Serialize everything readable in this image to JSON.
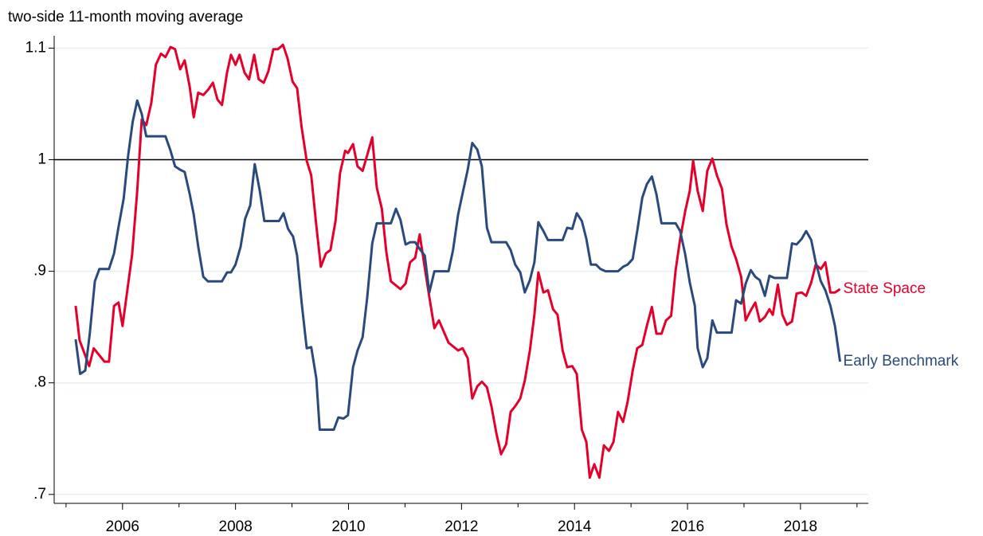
{
  "chart_data": {
    "type": "line",
    "title": "two-side 11-month moving average",
    "xlim": [
      2004.79,
      2019.2
    ],
    "xticks": [
      2006,
      2008,
      2010,
      2012,
      2014,
      2016,
      2018
    ],
    "xminor": [
      2005,
      2007,
      2009,
      2011,
      2013,
      2015,
      2017,
      2019
    ],
    "ylim": [
      0.692,
      1.111
    ],
    "yticks": [
      {
        "value": 0.7,
        "label": ".7"
      },
      {
        "value": 0.8,
        "label": ".8"
      },
      {
        "value": 0.9,
        "label": ".9"
      },
      1,
      1.1
    ],
    "hline": 1,
    "grid": true,
    "series": [
      {
        "name": "State Space",
        "color": "#e4002b",
        "x": [
          2005.17,
          2005.24,
          2005.41,
          2005.49,
          2005.68,
          2005.76,
          2005.85,
          2005.93,
          2006.0,
          2006.17,
          2006.26,
          2006.34,
          2006.42,
          2006.51,
          2006.59,
          2006.68,
          2006.76,
          2006.85,
          2006.93,
          2007.02,
          2007.1,
          2007.19,
          2007.26,
          2007.34,
          2007.43,
          2007.52,
          2007.6,
          2007.68,
          2007.76,
          2007.85,
          2007.92,
          2008.0,
          2008.07,
          2008.16,
          2008.24,
          2008.33,
          2008.41,
          2008.5,
          2008.58,
          2008.67,
          2008.75,
          2008.84,
          2008.92,
          2009.01,
          2009.09,
          2009.17,
          2009.26,
          2009.34,
          2009.43,
          2009.51,
          2009.6,
          2009.68,
          2009.77,
          2009.85,
          2009.94,
          2009.99,
          2010.08,
          2010.16,
          2010.25,
          2010.33,
          2010.42,
          2010.5,
          2010.59,
          2010.67,
          2010.75,
          2010.92,
          2011.01,
          2011.09,
          2011.18,
          2011.26,
          2011.35,
          2011.43,
          2011.52,
          2011.6,
          2011.77,
          2011.94,
          2012.02,
          2012.11,
          2012.19,
          2012.28,
          2012.36,
          2012.45,
          2012.53,
          2012.62,
          2012.7,
          2012.79,
          2012.87,
          2012.95,
          2013.04,
          2013.12,
          2013.21,
          2013.29,
          2013.36,
          2013.45,
          2013.53,
          2013.62,
          2013.7,
          2013.79,
          2013.87,
          2013.96,
          2014.04,
          2014.13,
          2014.21,
          2014.27,
          2014.35,
          2014.44,
          2014.52,
          2014.61,
          2014.69,
          2014.77,
          2014.86,
          2014.94,
          2015.03,
          2015.11,
          2015.2,
          2015.28,
          2015.37,
          2015.45,
          2015.54,
          2015.62,
          2015.71,
          2015.79,
          2015.87,
          2015.96,
          2016.04,
          2016.1,
          2016.18,
          2016.27,
          2016.35,
          2016.44,
          2016.52,
          2016.61,
          2016.69,
          2016.78,
          2016.86,
          2016.95,
          2017.03,
          2017.12,
          2017.2,
          2017.28,
          2017.37,
          2017.45,
          2017.51,
          2017.6,
          2017.68,
          2017.76,
          2017.85,
          2017.93,
          2018.02,
          2018.1,
          2018.19,
          2018.27,
          2018.36,
          2018.44,
          2018.53,
          2018.61,
          2018.7
        ],
        "values": [
          0.869,
          0.838,
          0.815,
          0.831,
          0.819,
          0.819,
          0.869,
          0.872,
          0.851,
          0.915,
          0.972,
          1.036,
          1.031,
          1.051,
          1.085,
          1.095,
          1.092,
          1.101,
          1.099,
          1.081,
          1.089,
          1.065,
          1.038,
          1.06,
          1.058,
          1.063,
          1.069,
          1.054,
          1.049,
          1.078,
          1.094,
          1.085,
          1.094,
          1.078,
          1.072,
          1.094,
          1.072,
          1.069,
          1.079,
          1.099,
          1.099,
          1.103,
          1.091,
          1.07,
          1.064,
          1.029,
          0.999,
          0.986,
          0.941,
          0.904,
          0.916,
          0.919,
          0.945,
          0.988,
          1.008,
          1.006,
          1.014,
          0.994,
          0.99,
          1.004,
          1.02,
          0.975,
          0.956,
          0.917,
          0.891,
          0.884,
          0.889,
          0.908,
          0.912,
          0.933,
          0.903,
          0.877,
          0.849,
          0.856,
          0.836,
          0.829,
          0.831,
          0.822,
          0.786,
          0.797,
          0.801,
          0.796,
          0.779,
          0.754,
          0.736,
          0.745,
          0.774,
          0.779,
          0.786,
          0.802,
          0.829,
          0.861,
          0.899,
          0.881,
          0.883,
          0.866,
          0.861,
          0.829,
          0.814,
          0.815,
          0.808,
          0.758,
          0.747,
          0.715,
          0.727,
          0.715,
          0.744,
          0.739,
          0.747,
          0.774,
          0.765,
          0.783,
          0.811,
          0.831,
          0.834,
          0.851,
          0.868,
          0.844,
          0.844,
          0.856,
          0.86,
          0.901,
          0.929,
          0.954,
          0.972,
          0.999,
          0.972,
          0.954,
          0.99,
          1.001,
          0.986,
          0.974,
          0.942,
          0.922,
          0.911,
          0.895,
          0.856,
          0.865,
          0.872,
          0.855,
          0.859,
          0.866,
          0.861,
          0.888,
          0.861,
          0.852,
          0.855,
          0.88,
          0.881,
          0.878,
          0.89,
          0.906,
          0.902,
          0.908,
          0.881,
          0.881,
          0.884
        ]
      },
      {
        "name": "Early Benchmark",
        "color": "#2a4a7f",
        "x": [
          2005.17,
          2005.25,
          2005.34,
          2005.42,
          2005.51,
          2005.59,
          2005.76,
          2005.85,
          2005.93,
          2006.02,
          2006.1,
          2006.18,
          2006.26,
          2006.34,
          2006.42,
          2006.76,
          2006.85,
          2006.93,
          2007.02,
          2007.1,
          2007.19,
          2007.26,
          2007.34,
          2007.43,
          2007.51,
          2007.76,
          2007.85,
          2007.92,
          2008.0,
          2008.09,
          2008.17,
          2008.26,
          2008.34,
          2008.43,
          2008.51,
          2008.77,
          2008.85,
          2008.93,
          2009.02,
          2009.09,
          2009.17,
          2009.26,
          2009.34,
          2009.43,
          2009.49,
          2009.74,
          2009.82,
          2009.91,
          2009.99,
          2010.08,
          2010.16,
          2010.25,
          2010.33,
          2010.42,
          2010.5,
          2010.75,
          2010.84,
          2010.92,
          2011.01,
          2011.09,
          2011.18,
          2011.26,
          2011.35,
          2011.43,
          2011.52,
          2011.77,
          2011.85,
          2011.94,
          2012.02,
          2012.11,
          2012.19,
          2012.28,
          2012.36,
          2012.45,
          2012.53,
          2012.79,
          2012.87,
          2012.95,
          2013.04,
          2013.12,
          2013.21,
          2013.29,
          2013.36,
          2013.45,
          2013.53,
          2013.79,
          2013.87,
          2013.96,
          2014.04,
          2014.13,
          2014.21,
          2014.29,
          2014.38,
          2014.46,
          2014.55,
          2014.77,
          2014.86,
          2014.94,
          2015.03,
          2015.11,
          2015.2,
          2015.28,
          2015.37,
          2015.45,
          2015.54,
          2015.79,
          2015.87,
          2015.96,
          2016.04,
          2016.13,
          2016.18,
          2016.27,
          2016.35,
          2016.44,
          2016.52,
          2016.78,
          2016.86,
          2016.95,
          2017.03,
          2017.12,
          2017.2,
          2017.28,
          2017.37,
          2017.45,
          2017.54,
          2017.76,
          2017.85,
          2017.93,
          2018.02,
          2018.1,
          2018.19,
          2018.27,
          2018.36,
          2018.44,
          2018.53,
          2018.61,
          2018.7
        ],
        "values": [
          0.839,
          0.808,
          0.811,
          0.844,
          0.891,
          0.902,
          0.902,
          0.916,
          0.94,
          0.965,
          1.004,
          1.034,
          1.053,
          1.041,
          1.021,
          1.021,
          1.008,
          0.994,
          0.991,
          0.989,
          0.969,
          0.951,
          0.922,
          0.895,
          0.891,
          0.891,
          0.899,
          0.899,
          0.906,
          0.922,
          0.947,
          0.959,
          0.996,
          0.972,
          0.945,
          0.945,
          0.952,
          0.938,
          0.931,
          0.914,
          0.872,
          0.831,
          0.832,
          0.804,
          0.758,
          0.758,
          0.769,
          0.768,
          0.771,
          0.814,
          0.829,
          0.841,
          0.876,
          0.925,
          0.943,
          0.943,
          0.956,
          0.946,
          0.924,
          0.926,
          0.926,
          0.92,
          0.914,
          0.881,
          0.9,
          0.9,
          0.919,
          0.951,
          0.97,
          0.991,
          1.015,
          1.009,
          0.994,
          0.939,
          0.926,
          0.926,
          0.919,
          0.906,
          0.899,
          0.881,
          0.892,
          0.908,
          0.944,
          0.936,
          0.928,
          0.928,
          0.939,
          0.938,
          0.952,
          0.945,
          0.929,
          0.906,
          0.906,
          0.902,
          0.9,
          0.9,
          0.904,
          0.906,
          0.911,
          0.936,
          0.966,
          0.978,
          0.985,
          0.969,
          0.943,
          0.943,
          0.936,
          0.915,
          0.89,
          0.869,
          0.831,
          0.814,
          0.822,
          0.856,
          0.845,
          0.845,
          0.874,
          0.871,
          0.889,
          0.901,
          0.895,
          0.892,
          0.878,
          0.896,
          0.894,
          0.894,
          0.925,
          0.924,
          0.929,
          0.936,
          0.928,
          0.908,
          0.891,
          0.883,
          0.869,
          0.851,
          0.819
        ]
      }
    ]
  }
}
